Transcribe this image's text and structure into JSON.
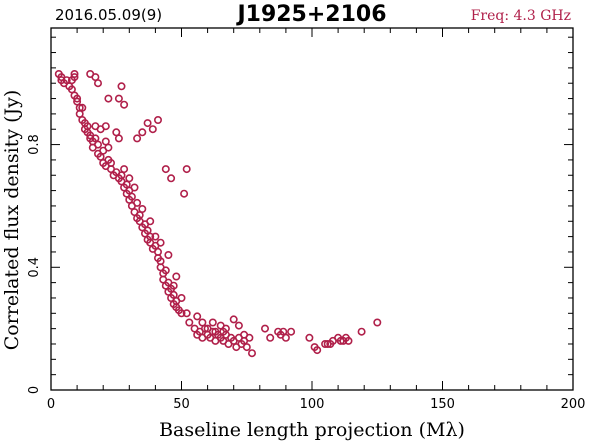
{
  "header": {
    "date": "2016.05.09(9)",
    "source": "J1925+2106",
    "freq": "Freq: 4.3 GHz",
    "freq_color": "#b0204a"
  },
  "chart_data": {
    "type": "scatter",
    "title": "J1925+2106",
    "xlabel": "Baseline length projection (Mλ)",
    "ylabel": "Correlated flux density (Jy)",
    "xlim": [
      0,
      200
    ],
    "ylim": [
      0,
      1.18
    ],
    "xticks": [
      "0",
      "50",
      "100",
      "150",
      "200"
    ],
    "yticks": [
      "0",
      "0.4",
      "0.8"
    ],
    "grid": false,
    "marker_color": "#b0204a",
    "points": [
      [
        3,
        1.03
      ],
      [
        4,
        1.02
      ],
      [
        4,
        1.01
      ],
      [
        5,
        1.0
      ],
      [
        6,
        1.01
      ],
      [
        7,
        0.99
      ],
      [
        8,
        0.98
      ],
      [
        8,
        1.01
      ],
      [
        9,
        1.02
      ],
      [
        9,
        1.03
      ],
      [
        9,
        0.96
      ],
      [
        10,
        0.95
      ],
      [
        10,
        0.94
      ],
      [
        11,
        0.92
      ],
      [
        11,
        0.9
      ],
      [
        12,
        0.92
      ],
      [
        12,
        0.88
      ],
      [
        13,
        0.87
      ],
      [
        13,
        0.85
      ],
      [
        14,
        0.86
      ],
      [
        14,
        0.84
      ],
      [
        15,
        0.82
      ],
      [
        15,
        0.83
      ],
      [
        16,
        0.81
      ],
      [
        16,
        0.79
      ],
      [
        17,
        0.86
      ],
      [
        17,
        0.82
      ],
      [
        18,
        0.77
      ],
      [
        18,
        0.8
      ],
      [
        19,
        0.76
      ],
      [
        19,
        0.85
      ],
      [
        20,
        0.78
      ],
      [
        20,
        0.74
      ],
      [
        21,
        0.81
      ],
      [
        21,
        0.73
      ],
      [
        22,
        0.75
      ],
      [
        22,
        0.79
      ],
      [
        23,
        0.72
      ],
      [
        23,
        0.74
      ],
      [
        24,
        0.7
      ],
      [
        25,
        0.71
      ],
      [
        25,
        0.84
      ],
      [
        26,
        0.69
      ],
      [
        26,
        0.82
      ],
      [
        27,
        0.7
      ],
      [
        27,
        0.68
      ],
      [
        28,
        0.66
      ],
      [
        28,
        0.72
      ],
      [
        29,
        0.67
      ],
      [
        29,
        0.64
      ],
      [
        30,
        0.65
      ],
      [
        30,
        0.62
      ],
      [
        31,
        0.63
      ],
      [
        31,
        0.6
      ],
      [
        32,
        0.66
      ],
      [
        32,
        0.58
      ],
      [
        33,
        0.61
      ],
      [
        33,
        0.56
      ],
      [
        34,
        0.57
      ],
      [
        34,
        0.55
      ],
      [
        35,
        0.59
      ],
      [
        35,
        0.53
      ],
      [
        36,
        0.54
      ],
      [
        36,
        0.51
      ],
      [
        37,
        0.52
      ],
      [
        37,
        0.49
      ],
      [
        38,
        0.5
      ],
      [
        38,
        0.48
      ],
      [
        39,
        0.46
      ],
      [
        40,
        0.5
      ],
      [
        40,
        0.47
      ],
      [
        41,
        0.45
      ],
      [
        41,
        0.43
      ],
      [
        42,
        0.42
      ],
      [
        42,
        0.4
      ],
      [
        43,
        0.38
      ],
      [
        43,
        0.36
      ],
      [
        44,
        0.39
      ],
      [
        44,
        0.34
      ],
      [
        45,
        0.35
      ],
      [
        45,
        0.32
      ],
      [
        46,
        0.33
      ],
      [
        46,
        0.3
      ],
      [
        47,
        0.31
      ],
      [
        47,
        0.28
      ],
      [
        48,
        0.29
      ],
      [
        48,
        0.27
      ],
      [
        49,
        0.26
      ],
      [
        50,
        0.3
      ],
      [
        50,
        0.25
      ],
      [
        51,
        0.64
      ],
      [
        52,
        0.72
      ],
      [
        15,
        1.03
      ],
      [
        17,
        1.02
      ],
      [
        18,
        1.0
      ],
      [
        22,
        0.95
      ],
      [
        27,
        0.99
      ],
      [
        28,
        0.93
      ],
      [
        26,
        0.95
      ],
      [
        33,
        0.82
      ],
      [
        35,
        0.84
      ],
      [
        37,
        0.87
      ],
      [
        39,
        0.85
      ],
      [
        41,
        0.88
      ],
      [
        44,
        0.72
      ],
      [
        46,
        0.69
      ],
      [
        21,
        0.86
      ],
      [
        30,
        0.69
      ],
      [
        38,
        0.55
      ],
      [
        42,
        0.48
      ],
      [
        45,
        0.44
      ],
      [
        48,
        0.37
      ],
      [
        47,
        0.34
      ],
      [
        52,
        0.25
      ],
      [
        53,
        0.22
      ],
      [
        55,
        0.2
      ],
      [
        56,
        0.18
      ],
      [
        57,
        0.19
      ],
      [
        58,
        0.17
      ],
      [
        59,
        0.2
      ],
      [
        60,
        0.18
      ],
      [
        61,
        0.17
      ],
      [
        62,
        0.19
      ],
      [
        63,
        0.16
      ],
      [
        64,
        0.18
      ],
      [
        65,
        0.17
      ],
      [
        66,
        0.16
      ],
      [
        67,
        0.18
      ],
      [
        68,
        0.15
      ],
      [
        69,
        0.17
      ],
      [
        70,
        0.16
      ],
      [
        71,
        0.14
      ],
      [
        72,
        0.17
      ],
      [
        73,
        0.15
      ],
      [
        74,
        0.16
      ],
      [
        75,
        0.14
      ],
      [
        60,
        0.2
      ],
      [
        62,
        0.22
      ],
      [
        65,
        0.21
      ],
      [
        67,
        0.2
      ],
      [
        70,
        0.23
      ],
      [
        72,
        0.21
      ],
      [
        74,
        0.18
      ],
      [
        56,
        0.24
      ],
      [
        58,
        0.22
      ],
      [
        63,
        0.19
      ],
      [
        77,
        0.12
      ],
      [
        82,
        0.2
      ],
      [
        84,
        0.17
      ],
      [
        87,
        0.19
      ],
      [
        88,
        0.18
      ],
      [
        89,
        0.19
      ],
      [
        90,
        0.17
      ],
      [
        92,
        0.19
      ],
      [
        99,
        0.17
      ],
      [
        101,
        0.14
      ],
      [
        102,
        0.13
      ],
      [
        105,
        0.15
      ],
      [
        107,
        0.15
      ],
      [
        108,
        0.16
      ],
      [
        110,
        0.17
      ],
      [
        112,
        0.16
      ],
      [
        113,
        0.17
      ],
      [
        114,
        0.16
      ],
      [
        119,
        0.19
      ],
      [
        125,
        0.22
      ],
      [
        106,
        0.15
      ],
      [
        111,
        0.16
      ],
      [
        76,
        0.17
      ],
      [
        66,
        0.19
      ]
    ]
  }
}
